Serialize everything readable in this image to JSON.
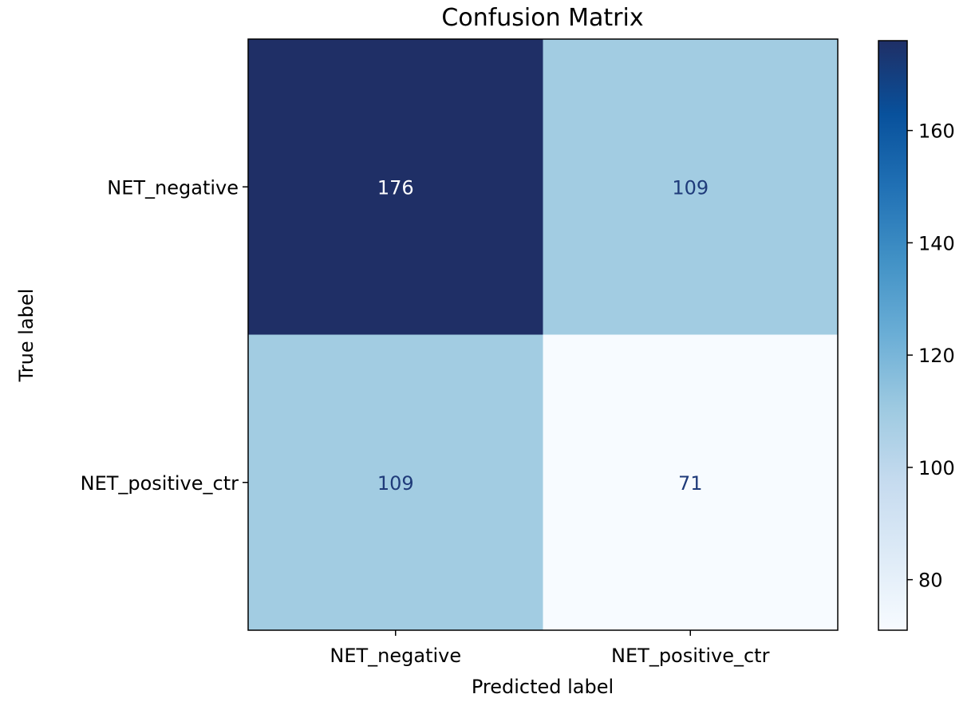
{
  "chart_data": {
    "type": "heatmap",
    "title": "Confusion Matrix",
    "xlabel": "Predicted label",
    "ylabel": "True label",
    "x_categories": [
      "NET_negative",
      "NET_positive_ctr"
    ],
    "y_categories": [
      "NET_negative",
      "NET_positive_ctr"
    ],
    "values": [
      [
        176,
        109
      ],
      [
        109,
        71
      ]
    ],
    "colormap": "Blues",
    "color_range": [
      71,
      176
    ],
    "colorbar_ticks": [
      80,
      100,
      120,
      140,
      160
    ],
    "colorbar_tick_labels": [
      "80",
      "100",
      "120",
      "140",
      "160"
    ],
    "cell_text_colors": {
      "dark_cells": "#ffffff",
      "light_cells": "#1f3b7a"
    }
  }
}
